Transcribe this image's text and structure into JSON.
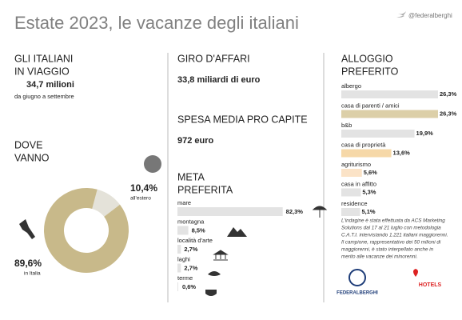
{
  "header": {
    "title": "Estate 2023, le vacanze degli italiani",
    "handle": "@federalberghi"
  },
  "travelers": {
    "title_lines": [
      "GLI ITALIANI",
      "IN VIAGGIO"
    ],
    "value": "34,7 milioni",
    "note": "da giugno a settembre"
  },
  "turnover": {
    "title": "GIRO D'AFFARI",
    "value": "33,8 miliardi di euro"
  },
  "spending": {
    "title": "SPESA MEDIA PRO CAPITE",
    "value": "972 euro"
  },
  "note_lines": [
    "L'indagine è stata effettuata da ACS Marketing",
    "Solutions dal 17 al 21 luglio con metodologia",
    "C.A.T.I. intervistando 1.221 italiani maggiorenni.",
    "Il campione, rappresentativo dei 50 milioni di",
    "maggiorenni, è stato interpellato anche in",
    "merito alle vacanze dei minorenni."
  ],
  "logos": [
    "FEDERALBERGHI",
    "HOTELS"
  ],
  "chart_data": [
    {
      "type": "pie",
      "title_lines": [
        "DOVE",
        "VANNO"
      ],
      "categories": [
        "all'estero",
        "in Italia"
      ],
      "values": [
        10.4,
        89.6
      ],
      "value_labels": [
        "10,4%",
        "89,6%"
      ],
      "colors": [
        "#e4e2d9",
        "#c8b98a"
      ]
    },
    {
      "type": "bar",
      "title_lines": [
        "META",
        "PREFERITA"
      ],
      "categories": [
        "mare",
        "montagna",
        "località d'arte",
        "laghi",
        "terme"
      ],
      "values": [
        82.3,
        8.5,
        2.7,
        2.7,
        0.6
      ],
      "value_labels": [
        "82,3%",
        "8,5%",
        "2,7%",
        "2,7%",
        "0,6%"
      ],
      "color": "#e3e3e3"
    },
    {
      "type": "bar",
      "title_lines": [
        "ALLOGGIO",
        "PREFERITO"
      ],
      "categories": [
        "albergo",
        "casa di parenti / amici",
        "b&b",
        "casa di proprietà",
        "agriturismo",
        "casa in affitto",
        "residence"
      ],
      "values": [
        26.3,
        26.3,
        19.9,
        13.6,
        5.6,
        5.3,
        5.1
      ],
      "value_labels": [
        "26,3%",
        "26,3%",
        "19,9%",
        "13,6%",
        "5,6%",
        "5,3%",
        "5,1%"
      ],
      "colors": [
        "#e3e3e3",
        "#dccfa8",
        "#e3e3e3",
        "#f6d8a8",
        "#fbe3c7",
        "#e3e3e3",
        "#e3e3e3"
      ]
    }
  ]
}
